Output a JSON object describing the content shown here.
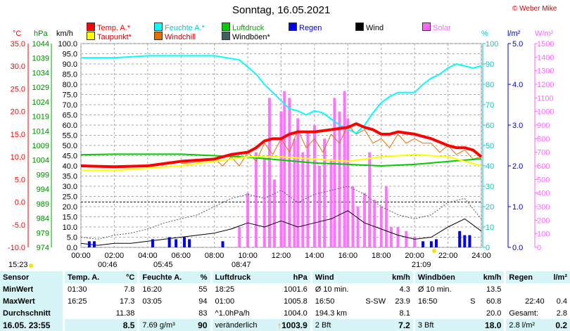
{
  "title": "Sonntag, 16.05.2021",
  "credit": "© Weber Mike",
  "legend": [
    {
      "label": "Temp. A.*",
      "color": "#ff0000"
    },
    {
      "label": "Feuchte A.*",
      "color": "#00ffff"
    },
    {
      "label": "Luftdruck",
      "color": "#00cc00"
    },
    {
      "label": "Regen",
      "color": "#0000ff"
    },
    {
      "label": "Wind",
      "color": "#000000"
    },
    {
      "label": "Solar",
      "color": "#ff66ff"
    },
    {
      "label": "Taupunkt*",
      "color": "#ffff00"
    },
    {
      "label": "Windchill",
      "color": "#e07000"
    },
    {
      "label": "Windböen*",
      "color": "#406060"
    }
  ],
  "units": {
    "temp": "°C",
    "pressure": "hPa",
    "wind": "km/h",
    "humidity": "%",
    "rain": "l/m²",
    "solar": "W/m²"
  },
  "sun": {
    "sunrise": "05:45",
    "sunset": "21:09",
    "moonrise": "00:46",
    "moonset": "08:47",
    "daylight": "15:23"
  },
  "chart_data": {
    "type": "line",
    "title": "Sonntag, 16.05.2021",
    "x_ticks": [
      "00:00",
      "02:00",
      "04:00",
      "06:00",
      "08:00",
      "10:00",
      "12:00",
      "14:00",
      "16:00",
      "18:00",
      "20:00",
      "22:00",
      "24:00"
    ],
    "axes": {
      "temp": {
        "label": "°C",
        "range": [
          -10,
          35
        ],
        "ticks": [
          "35.0",
          "30.0",
          "25.0",
          "20.0",
          "15.0",
          "10.0",
          "5.0",
          "0.0",
          "-5.0",
          "-10.0"
        ],
        "color": "#ff0000"
      },
      "pressure": {
        "label": "hPa",
        "range": [
          974,
          1044
        ],
        "ticks": [
          "1044",
          "1039",
          "1034",
          "1029",
          "1024",
          "1019",
          "1014",
          "1009",
          "1004",
          "999",
          "994",
          "989",
          "984",
          "979",
          "974"
        ],
        "color": "#008800"
      },
      "wind": {
        "label": "km/h",
        "range": [
          0,
          100
        ],
        "ticks": [
          "100.0",
          "95.0",
          "90.0",
          "85.0",
          "80.0",
          "75.0",
          "70.0",
          "65.0",
          "60.0",
          "55.0",
          "50.0",
          "45.0",
          "40.0",
          "35.0",
          "30.0",
          "25.0",
          "20.0",
          "15.0",
          "10.0",
          "5.0",
          "0.0"
        ],
        "color": "#000000"
      },
      "humidity": {
        "label": "%",
        "range": [
          0,
          100
        ],
        "ticks": [
          "100",
          "90",
          "80",
          "70",
          "60",
          "50",
          "40",
          "30",
          "20",
          "10",
          "0"
        ],
        "color": "#00c8c8"
      },
      "rain": {
        "label": "l/m²",
        "range": [
          0,
          5
        ],
        "ticks": [
          "5.0",
          "4.0",
          "3.0",
          "2.0",
          "1.0",
          "0.0"
        ],
        "color": "#0000cc"
      },
      "solar": {
        "label": "W/m²",
        "range": [
          0,
          1500
        ],
        "ticks": [
          "1500",
          "1400",
          "1300",
          "1200",
          "1100",
          "1000",
          "900",
          "800",
          "700",
          "600",
          "500",
          "400",
          "300",
          "200",
          "100",
          "0"
        ],
        "color": "#ff66ff"
      }
    },
    "series": [
      {
        "name": "Temp. A.*",
        "axis": "temp",
        "color": "#ff0000",
        "x": [
          0,
          2,
          4,
          6,
          8,
          9,
          10,
          10.5,
          11,
          11.5,
          12,
          12.5,
          13,
          14,
          15,
          16,
          16.5,
          17,
          17.5,
          18,
          18.5,
          19,
          20,
          21,
          22,
          22.5,
          23,
          23.5,
          24
        ],
        "y": [
          8,
          7.8,
          8,
          9,
          9.5,
          10.5,
          11,
          12,
          13.5,
          14,
          14,
          15,
          15.5,
          15.5,
          16,
          16.5,
          17.3,
          16.5,
          16,
          15,
          15,
          15.5,
          15,
          14,
          12.5,
          12,
          12,
          11.5,
          10
        ]
      },
      {
        "name": "Taupunkt*",
        "axis": "temp",
        "color": "#ffff00",
        "x": [
          0,
          2,
          4,
          6,
          8,
          10,
          12,
          14,
          16,
          18,
          20,
          22,
          24
        ],
        "y": [
          7,
          7,
          7.5,
          8,
          9,
          10,
          10,
          9.5,
          9,
          10,
          10.5,
          10,
          8
        ]
      },
      {
        "name": "Feuchte A.*",
        "axis": "humidity",
        "color": "#00ffff",
        "x": [
          0,
          2,
          4,
          6,
          8,
          9.5,
          10.5,
          11,
          11.5,
          12,
          12.5,
          13,
          13.5,
          14,
          14.5,
          15,
          15.5,
          16,
          16.5,
          17,
          17.5,
          18,
          18.5,
          19,
          20,
          20.5,
          21,
          21.5,
          22,
          22.5,
          23,
          23.5,
          24
        ],
        "y": [
          93,
          93,
          94,
          94,
          94,
          92,
          85,
          80,
          76,
          72,
          68,
          67,
          65,
          67,
          66,
          63,
          60,
          58,
          56,
          60,
          66,
          71,
          74,
          76,
          76,
          80,
          83,
          85,
          88,
          90,
          89,
          88,
          89
        ]
      },
      {
        "name": "Luftdruck",
        "axis": "pressure",
        "color": "#00cc00",
        "x": [
          0,
          2,
          4,
          6,
          8,
          10,
          12,
          14,
          16,
          18,
          20,
          22,
          24
        ],
        "y": [
          1005.8,
          1006,
          1006,
          1006,
          1005.5,
          1005,
          1004,
          1003,
          1002.5,
          1002,
          1002.5,
          1003.5,
          1004.4
        ]
      },
      {
        "name": "Windchill",
        "axis": "temp",
        "color": "#e07000",
        "x": [
          6,
          7,
          8,
          8.5,
          9,
          9.5,
          10,
          10.5,
          11,
          11.5,
          12,
          12.5,
          13,
          13.5,
          14,
          14.5,
          15,
          15.5,
          16,
          16.5,
          17,
          17.5,
          18,
          18.5,
          19,
          19.5,
          20,
          20.5,
          21,
          21.5,
          22,
          22.5,
          23,
          23.5,
          24
        ],
        "y": [
          8.5,
          8.8,
          9.5,
          8,
          10,
          8,
          11,
          9,
          13,
          10.5,
          14,
          11,
          16,
          12,
          14,
          11,
          15,
          13,
          17,
          15,
          16,
          13,
          14,
          12,
          15,
          13,
          14,
          13,
          13,
          11,
          12.5,
          10.5,
          11.5,
          9.5,
          10
        ]
      },
      {
        "name": "Wind",
        "axis": "wind",
        "color": "#000000",
        "x": [
          0,
          1,
          2,
          3,
          4,
          5,
          6,
          7,
          8,
          9,
          10,
          11,
          12,
          13,
          14,
          15,
          16,
          17,
          18,
          19,
          20,
          21,
          22,
          23,
          24
        ],
        "y": [
          2,
          1,
          2,
          2,
          3,
          4,
          5,
          6,
          7,
          9,
          12,
          10,
          13,
          10,
          12,
          14,
          18,
          12,
          9,
          6,
          4,
          5,
          10,
          14,
          8
        ]
      },
      {
        "name": "Windböen*",
        "axis": "wind",
        "color": "#406060",
        "x": [
          0,
          1,
          2,
          3,
          4,
          5,
          6,
          7,
          8,
          9,
          10,
          11,
          12,
          13,
          14,
          15,
          16,
          17,
          18,
          19,
          20,
          21,
          22,
          23,
          24
        ],
        "y": [
          5,
          4,
          6,
          7,
          9,
          12,
          14,
          16,
          20,
          24,
          26,
          24,
          28,
          22,
          26,
          28,
          30,
          26,
          20,
          16,
          14,
          16,
          22,
          24,
          14
        ]
      },
      {
        "name": "Solar",
        "axis": "solar",
        "color": "#ff66ff",
        "x": [
          9.5,
          10,
          10.5,
          11,
          11.3,
          11.6,
          12,
          12.2,
          12.5,
          12.8,
          13,
          13.3,
          13.6,
          14,
          14.3,
          14.6,
          15,
          15.2,
          15.5,
          15.8,
          16,
          16.3,
          16.6,
          17,
          17.3,
          17.6,
          18,
          18.3,
          18.6,
          19,
          19.5,
          20,
          20.5,
          21
        ],
        "y": [
          150,
          400,
          700,
          650,
          1100,
          500,
          1000,
          1150,
          1100,
          800,
          950,
          700,
          850,
          900,
          600,
          800,
          650,
          1100,
          1000,
          1150,
          950,
          450,
          300,
          400,
          700,
          350,
          300,
          450,
          150,
          150,
          120,
          80,
          40,
          0
        ]
      },
      {
        "name": "Regen",
        "axis": "rain",
        "color": "#0000ff",
        "x": [
          0.5,
          0.8,
          4.3,
          5.3,
          5.7,
          6.2,
          6.5,
          8.5,
          20.5,
          21,
          21.3,
          22.7,
          23,
          23.3
        ],
        "y": [
          0.15,
          0.15,
          0.2,
          0.25,
          0.2,
          0.25,
          0.2,
          0.15,
          0.15,
          0.15,
          0.2,
          0.4,
          0.3,
          0.3
        ]
      }
    ],
    "grid": true
  },
  "stats": {
    "headers": {
      "sensor": "Sensor",
      "temp": "Temp. A.",
      "temp_unit": "°C",
      "hum": "Feuchte A.",
      "hum_unit": "%",
      "press": "Luftdruck",
      "press_unit": "hPa",
      "wind": "Wind",
      "wind_unit": "km/h",
      "gust": "Windböen",
      "gust_unit": "km/h",
      "rain": "Regen",
      "rain_unit": "l/m²"
    },
    "labels": {
      "min": "MinWert",
      "max": "MaxWert",
      "avg": "Durchschnitt",
      "current": "16.05. 23:55"
    },
    "temp": {
      "min_time": "01:30",
      "min": "7.8",
      "max_time": "16:25",
      "max": "17.3",
      "avg": "11.38",
      "current": "8.5"
    },
    "hum": {
      "min_time": "16:20",
      "min": "55",
      "max_time": "03:05",
      "max": "94",
      "avg": "83",
      "current_extra": "7.69 g/m³",
      "current": "90"
    },
    "press": {
      "min_time": "18:25",
      "min": "1001.6",
      "max_time": "01:00",
      "max": "1005.8",
      "avg_label": "^1.0hPa/h",
      "avg": "1004.0",
      "current_label": "veränderlich",
      "current": "1003.9"
    },
    "wind": {
      "r1_label": "Ø 10 min.",
      "r1_val": "4.3",
      "r2_time": "16:50",
      "r2_dir": "S-SW",
      "r2_val": "23.9",
      "r3_dist": "194.3 km",
      "r3_val": "8.1",
      "r4_label": "2 Bft",
      "r4_val": "7.2"
    },
    "gust": {
      "r1_label": "Ø 10 min.",
      "r1_val": "13.5",
      "r2_time": "16:50",
      "r2_dir": "S",
      "r2_val": "60.8",
      "r3_val": "20.0",
      "r4_label": "3 Bft",
      "r4_val": "18.0"
    },
    "rain": {
      "r2_time": "22:40",
      "r2_val": "0.4",
      "r3_label": "Gesamt:",
      "r3_val": "2.8",
      "r4_extra": "2.8 l/m²",
      "r4_val": "0.2"
    }
  }
}
